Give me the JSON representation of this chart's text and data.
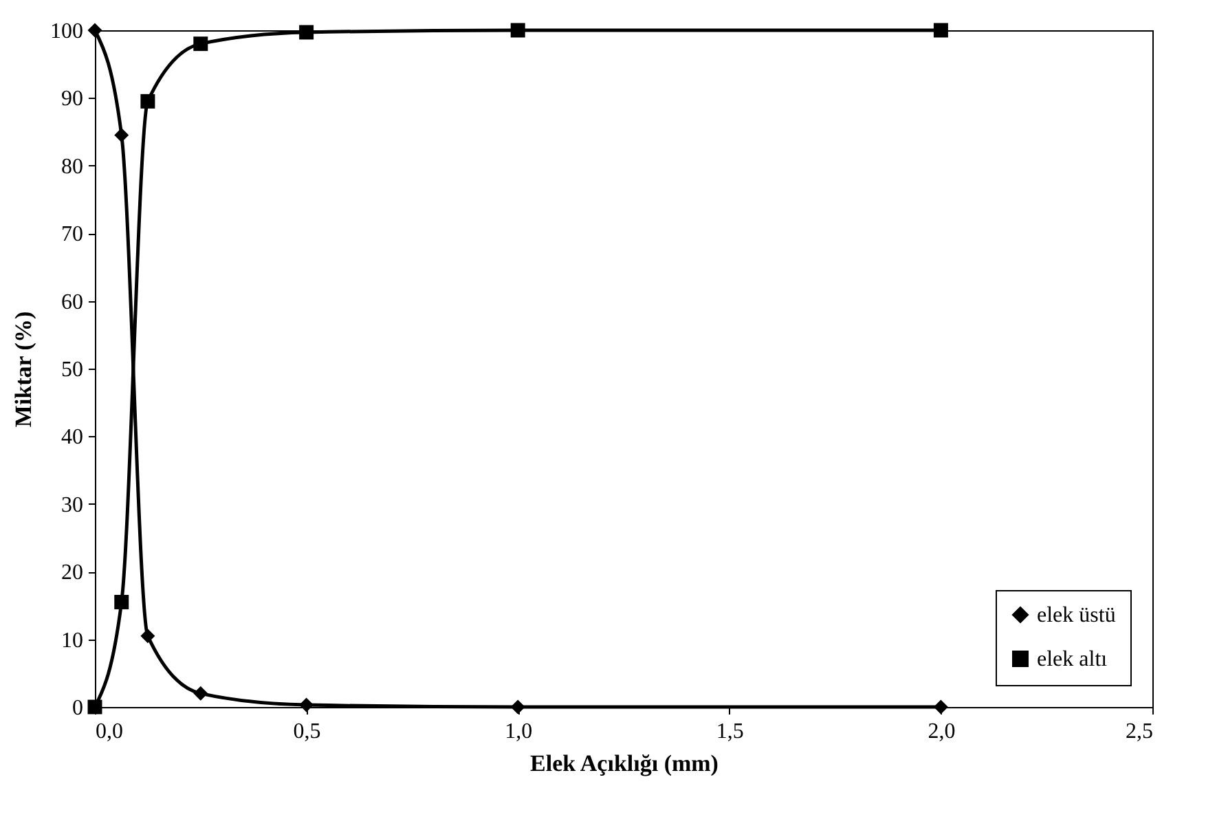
{
  "chart_data": {
    "type": "line",
    "xlabel": "Elek Açıklığı (mm)",
    "ylabel": "Miktar (%)",
    "xlim": [
      0,
      2.5
    ],
    "ylim": [
      0,
      100
    ],
    "xticks": [
      {
        "value": 0,
        "label": "0,0"
      },
      {
        "value": 0.5,
        "label": "0,5"
      },
      {
        "value": 1,
        "label": "1,0"
      },
      {
        "value": 1.5,
        "label": "1,5"
      },
      {
        "value": 2,
        "label": "2,0"
      },
      {
        "value": 2.5,
        "label": "2,5"
      }
    ],
    "yticks": [
      0,
      10,
      20,
      30,
      40,
      50,
      60,
      70,
      80,
      90,
      100
    ],
    "grid": false,
    "legend": "bottom right",
    "line_style": "solid",
    "series": [
      {
        "name": "elek üstü",
        "color": "#000000",
        "marker": "diamond",
        "x": [
          0,
          0.063,
          0.125,
          0.25,
          0.5,
          1,
          2
        ],
        "values": [
          100,
          84.5,
          10.5,
          2,
          0.3,
          0,
          0
        ]
      },
      {
        "name": "elek altı",
        "color": "#000000",
        "marker": "square",
        "x": [
          0,
          0.063,
          0.125,
          0.25,
          0.5,
          1,
          2
        ],
        "values": [
          0,
          15.5,
          89.5,
          98,
          99.7,
          100,
          100
        ]
      }
    ]
  }
}
